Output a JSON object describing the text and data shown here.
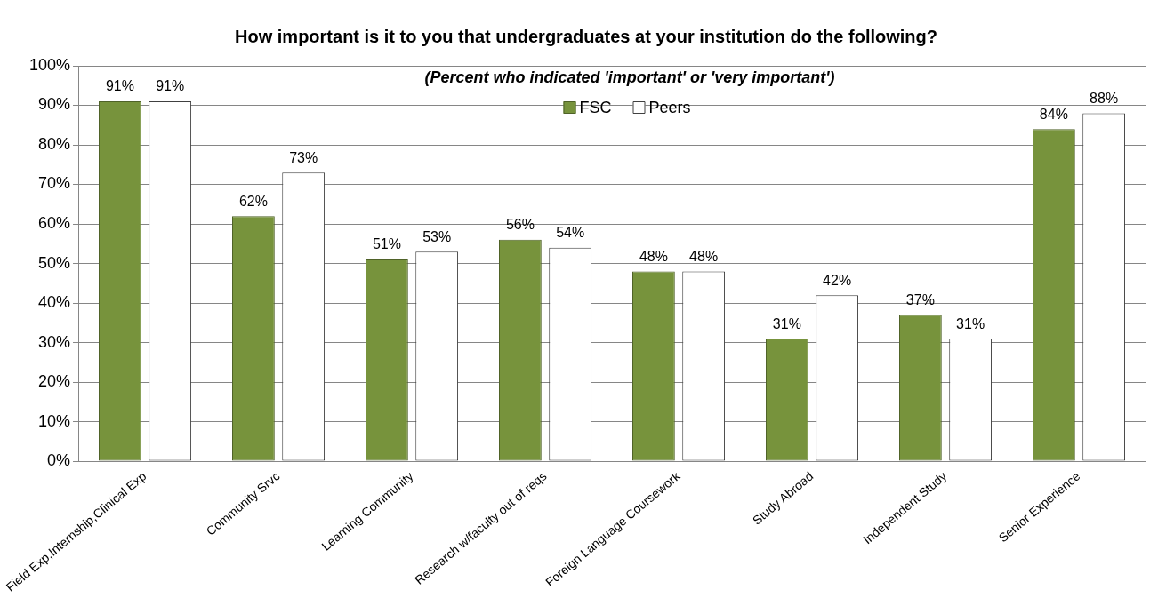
{
  "chart_data": {
    "type": "bar",
    "title": "How important is it to you that undergraduates at your institution do the following?",
    "subtitle": "(Percent who indicated 'important' or 'very important')",
    "categories": [
      "Field Exp,Internship,Clinical Exp",
      "Community Srvc",
      "Learning Community",
      "Research w/faculty out of reqs",
      "Foreign Language Coursework",
      "Study Abroad",
      "Independent Study",
      "Senior Experience"
    ],
    "series": [
      {
        "name": "FSC",
        "color": "#77933c",
        "values": [
          91,
          62,
          51,
          56,
          48,
          31,
          37,
          84
        ],
        "value_labels": [
          "91%",
          "62%",
          "51%",
          "56%",
          "48%",
          "31%",
          "37%",
          "84%"
        ]
      },
      {
        "name": "Peers",
        "color": "#ffffff",
        "values": [
          91,
          73,
          53,
          54,
          48,
          42,
          31,
          88
        ],
        "value_labels": [
          "91%",
          "73%",
          "53%",
          "54%",
          "48%",
          "42%",
          "31%",
          "88%"
        ]
      }
    ],
    "ylim": [
      0,
      100
    ],
    "yticks": [
      {
        "value": 0,
        "label": "0%"
      },
      {
        "value": 10,
        "label": "10%"
      },
      {
        "value": 20,
        "label": "20%"
      },
      {
        "value": 30,
        "label": "30%"
      },
      {
        "value": 40,
        "label": "40%"
      },
      {
        "value": 50,
        "label": "50%"
      },
      {
        "value": 60,
        "label": "60%"
      },
      {
        "value": 70,
        "label": "70%"
      },
      {
        "value": 80,
        "label": "80%"
      },
      {
        "value": 90,
        "label": "90%"
      },
      {
        "value": 100,
        "label": "100%"
      }
    ],
    "grid": "y",
    "legend": "top"
  }
}
